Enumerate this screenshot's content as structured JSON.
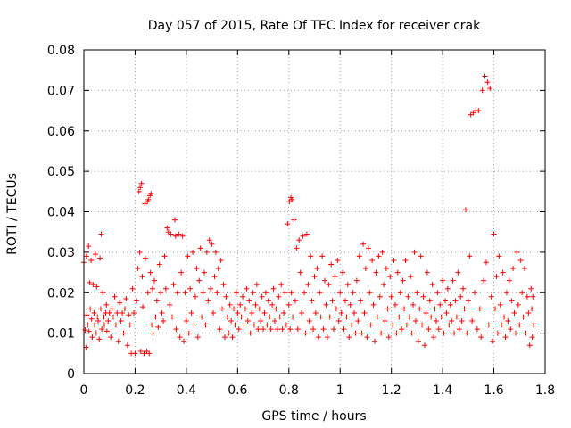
{
  "chart_data": {
    "type": "scatter",
    "title": "Day 057 of 2015, Rate Of TEC Index for receiver crak",
    "xlabel": "GPS time / hours",
    "ylabel": "ROTI / TECUs",
    "xlim": [
      0,
      1.8
    ],
    "ylim": [
      0,
      0.08
    ],
    "grid": true,
    "marker": "+",
    "color": "#ff0000",
    "x_ticks": [
      {
        "value": 0,
        "label": "0"
      },
      {
        "value": 0.2,
        "label": "0.2"
      },
      {
        "value": 0.4,
        "label": "0.4"
      },
      {
        "value": 0.6,
        "label": "0.6"
      },
      {
        "value": 0.8,
        "label": "0.8"
      },
      {
        "value": 1.0,
        "label": "1"
      },
      {
        "value": 1.2,
        "label": "1.2"
      },
      {
        "value": 1.4,
        "label": "1.4"
      },
      {
        "value": 1.6,
        "label": "1.6"
      },
      {
        "value": 1.8,
        "label": "1.8"
      }
    ],
    "y_ticks": [
      {
        "value": 0,
        "label": "0"
      },
      {
        "value": 0.01,
        "label": "0.01"
      },
      {
        "value": 0.02,
        "label": "0.02"
      },
      {
        "value": 0.03,
        "label": "0.03"
      },
      {
        "value": 0.04,
        "label": "0.04"
      },
      {
        "value": 0.05,
        "label": "0.05"
      },
      {
        "value": 0.06,
        "label": "0.06"
      },
      {
        "value": 0.07,
        "label": "0.07"
      },
      {
        "value": 0.08,
        "label": "0.08"
      }
    ],
    "points": [
      [
        0.0,
        0.0275
      ],
      [
        0.005,
        0.0108
      ],
      [
        0.008,
        0.0065
      ],
      [
        0.01,
        0.029
      ],
      [
        0.012,
        0.0145
      ],
      [
        0.015,
        0.012
      ],
      [
        0.018,
        0.0315
      ],
      [
        0.02,
        0.0105
      ],
      [
        0.022,
        0.0225
      ],
      [
        0.025,
        0.016
      ],
      [
        0.028,
        0.028
      ],
      [
        0.03,
        0.0135
      ],
      [
        0.033,
        0.009
      ],
      [
        0.036,
        0.022
      ],
      [
        0.04,
        0.015
      ],
      [
        0.042,
        0.012
      ],
      [
        0.045,
        0.0295
      ],
      [
        0.048,
        0.01
      ],
      [
        0.05,
        0.0215
      ],
      [
        0.053,
        0.014
      ],
      [
        0.056,
        0.013
      ],
      [
        0.06,
        0.0085
      ],
      [
        0.063,
        0.0285
      ],
      [
        0.066,
        0.016
      ],
      [
        0.068,
        0.0345
      ],
      [
        0.07,
        0.011
      ],
      [
        0.074,
        0.02
      ],
      [
        0.078,
        0.014
      ],
      [
        0.08,
        0.012
      ],
      [
        0.085,
        0.015
      ],
      [
        0.088,
        0.017
      ],
      [
        0.09,
        0.0105
      ],
      [
        0.095,
        0.013
      ],
      [
        0.1,
        0.015
      ],
      [
        0.105,
        0.009
      ],
      [
        0.11,
        0.016
      ],
      [
        0.115,
        0.014
      ],
      [
        0.12,
        0.019
      ],
      [
        0.125,
        0.012
      ],
      [
        0.13,
        0.015
      ],
      [
        0.135,
        0.008
      ],
      [
        0.14,
        0.0175
      ],
      [
        0.145,
        0.013
      ],
      [
        0.15,
        0.015
      ],
      [
        0.155,
        0.01
      ],
      [
        0.16,
        0.016
      ],
      [
        0.165,
        0.0185
      ],
      [
        0.17,
        0.007
      ],
      [
        0.175,
        0.0145
      ],
      [
        0.18,
        0.012
      ],
      [
        0.185,
        0.005
      ],
      [
        0.19,
        0.021
      ],
      [
        0.195,
        0.015
      ],
      [
        0.2,
        0.005
      ],
      [
        0.205,
        0.018
      ],
      [
        0.21,
        0.026
      ],
      [
        0.215,
        0.045
      ],
      [
        0.218,
        0.03
      ],
      [
        0.22,
        0.046
      ],
      [
        0.222,
        0.0055
      ],
      [
        0.225,
        0.047
      ],
      [
        0.228,
        0.024
      ],
      [
        0.23,
        0.0165
      ],
      [
        0.235,
        0.005
      ],
      [
        0.238,
        0.042
      ],
      [
        0.24,
        0.0285
      ],
      [
        0.245,
        0.0055
      ],
      [
        0.248,
        0.0425
      ],
      [
        0.25,
        0.02
      ],
      [
        0.252,
        0.043
      ],
      [
        0.255,
        0.005
      ],
      [
        0.258,
        0.044
      ],
      [
        0.26,
        0.025
      ],
      [
        0.262,
        0.0445
      ],
      [
        0.265,
        0.012
      ],
      [
        0.268,
        0.021
      ],
      [
        0.27,
        0.01
      ],
      [
        0.275,
        0.023
      ],
      [
        0.28,
        0.014
      ],
      [
        0.285,
        0.018
      ],
      [
        0.29,
        0.0115
      ],
      [
        0.295,
        0.027
      ],
      [
        0.3,
        0.02
      ],
      [
        0.305,
        0.015
      ],
      [
        0.31,
        0.013
      ],
      [
        0.315,
        0.029
      ],
      [
        0.32,
        0.021
      ],
      [
        0.325,
        0.036
      ],
      [
        0.33,
        0.035
      ],
      [
        0.335,
        0.017
      ],
      [
        0.34,
        0.0345
      ],
      [
        0.345,
        0.014
      ],
      [
        0.35,
        0.022
      ],
      [
        0.355,
        0.038
      ],
      [
        0.358,
        0.034
      ],
      [
        0.36,
        0.011
      ],
      [
        0.365,
        0.02
      ],
      [
        0.37,
        0.0345
      ],
      [
        0.375,
        0.009
      ],
      [
        0.38,
        0.025
      ],
      [
        0.385,
        0.034
      ],
      [
        0.39,
        0.008
      ],
      [
        0.395,
        0.02
      ],
      [
        0.4,
        0.013
      ],
      [
        0.405,
        0.029
      ],
      [
        0.41,
        0.01
      ],
      [
        0.415,
        0.021
      ],
      [
        0.42,
        0.015
      ],
      [
        0.425,
        0.03
      ],
      [
        0.43,
        0.012
      ],
      [
        0.435,
        0.019
      ],
      [
        0.44,
        0.026
      ],
      [
        0.445,
        0.009
      ],
      [
        0.45,
        0.023
      ],
      [
        0.455,
        0.031
      ],
      [
        0.46,
        0.014
      ],
      [
        0.465,
        0.02
      ],
      [
        0.47,
        0.025
      ],
      [
        0.475,
        0.012
      ],
      [
        0.48,
        0.03
      ],
      [
        0.485,
        0.018
      ],
      [
        0.49,
        0.033
      ],
      [
        0.495,
        0.021
      ],
      [
        0.5,
        0.032
      ],
      [
        0.505,
        0.015
      ],
      [
        0.51,
        0.024
      ],
      [
        0.515,
        0.03
      ],
      [
        0.52,
        0.02
      ],
      [
        0.525,
        0.026
      ],
      [
        0.53,
        0.011
      ],
      [
        0.535,
        0.028
      ],
      [
        0.54,
        0.016
      ],
      [
        0.545,
        0.022
      ],
      [
        0.55,
        0.009
      ],
      [
        0.555,
        0.019
      ],
      [
        0.56,
        0.014
      ],
      [
        0.565,
        0.01
      ],
      [
        0.57,
        0.017
      ],
      [
        0.575,
        0.013
      ],
      [
        0.58,
        0.009
      ],
      [
        0.585,
        0.016
      ],
      [
        0.59,
        0.012
      ],
      [
        0.595,
        0.02
      ],
      [
        0.6,
        0.015
      ],
      [
        0.605,
        0.011
      ],
      [
        0.61,
        0.017
      ],
      [
        0.615,
        0.014
      ],
      [
        0.62,
        0.019
      ],
      [
        0.625,
        0.012
      ],
      [
        0.63,
        0.016
      ],
      [
        0.635,
        0.021
      ],
      [
        0.64,
        0.013
      ],
      [
        0.645,
        0.018
      ],
      [
        0.65,
        0.01
      ],
      [
        0.655,
        0.015
      ],
      [
        0.66,
        0.02
      ],
      [
        0.665,
        0.012
      ],
      [
        0.67,
        0.017
      ],
      [
        0.675,
        0.022
      ],
      [
        0.68,
        0.011
      ],
      [
        0.685,
        0.016
      ],
      [
        0.69,
        0.013
      ],
      [
        0.695,
        0.019
      ],
      [
        0.7,
        0.011
      ],
      [
        0.705,
        0.015
      ],
      [
        0.71,
        0.02
      ],
      [
        0.715,
        0.012
      ],
      [
        0.72,
        0.018
      ],
      [
        0.725,
        0.014
      ],
      [
        0.73,
        0.011
      ],
      [
        0.735,
        0.017
      ],
      [
        0.74,
        0.021
      ],
      [
        0.745,
        0.013
      ],
      [
        0.75,
        0.016
      ],
      [
        0.755,
        0.011
      ],
      [
        0.76,
        0.019
      ],
      [
        0.765,
        0.014
      ],
      [
        0.77,
        0.022
      ],
      [
        0.775,
        0.011
      ],
      [
        0.78,
        0.015
      ],
      [
        0.785,
        0.02
      ],
      [
        0.79,
        0.012
      ],
      [
        0.795,
        0.037
      ],
      [
        0.8,
        0.017
      ],
      [
        0.802,
        0.0425
      ],
      [
        0.805,
        0.011
      ],
      [
        0.808,
        0.0435
      ],
      [
        0.81,
        0.02
      ],
      [
        0.812,
        0.043
      ],
      [
        0.815,
        0.014
      ],
      [
        0.82,
        0.038
      ],
      [
        0.825,
        0.018
      ],
      [
        0.83,
        0.031
      ],
      [
        0.835,
        0.011
      ],
      [
        0.84,
        0.033
      ],
      [
        0.845,
        0.025
      ],
      [
        0.85,
        0.015
      ],
      [
        0.855,
        0.034
      ],
      [
        0.86,
        0.02
      ],
      [
        0.865,
        0.01
      ],
      [
        0.87,
        0.0345
      ],
      [
        0.875,
        0.022
      ],
      [
        0.88,
        0.013
      ],
      [
        0.885,
        0.029
      ],
      [
        0.89,
        0.018
      ],
      [
        0.895,
        0.011
      ],
      [
        0.9,
        0.024
      ],
      [
        0.905,
        0.015
      ],
      [
        0.91,
        0.026
      ],
      [
        0.915,
        0.009
      ],
      [
        0.92,
        0.02
      ],
      [
        0.925,
        0.014
      ],
      [
        0.93,
        0.029
      ],
      [
        0.935,
        0.011
      ],
      [
        0.94,
        0.023
      ],
      [
        0.945,
        0.017
      ],
      [
        0.95,
        0.009
      ],
      [
        0.955,
        0.022
      ],
      [
        0.96,
        0.014
      ],
      [
        0.965,
        0.027
      ],
      [
        0.97,
        0.018
      ],
      [
        0.975,
        0.011
      ],
      [
        0.98,
        0.024
      ],
      [
        0.985,
        0.016
      ],
      [
        0.99,
        0.028
      ],
      [
        0.995,
        0.013
      ],
      [
        1.0,
        0.02
      ],
      [
        1.005,
        0.015
      ],
      [
        1.01,
        0.025
      ],
      [
        1.015,
        0.011
      ],
      [
        1.02,
        0.018
      ],
      [
        1.025,
        0.014
      ],
      [
        1.03,
        0.022
      ],
      [
        1.035,
        0.009
      ],
      [
        1.04,
        0.017
      ],
      [
        1.045,
        0.012
      ],
      [
        1.05,
        0.02
      ],
      [
        1.055,
        0.015
      ],
      [
        1.06,
        0.01
      ],
      [
        1.065,
        0.023
      ],
      [
        1.07,
        0.013
      ],
      [
        1.075,
        0.029
      ],
      [
        1.08,
        0.018
      ],
      [
        1.085,
        0.01
      ],
      [
        1.09,
        0.032
      ],
      [
        1.095,
        0.015
      ],
      [
        1.1,
        0.026
      ],
      [
        1.105,
        0.009
      ],
      [
        1.11,
        0.031
      ],
      [
        1.115,
        0.02
      ],
      [
        1.12,
        0.012
      ],
      [
        1.125,
        0.028
      ],
      [
        1.13,
        0.017
      ],
      [
        1.135,
        0.008
      ],
      [
        1.14,
        0.025
      ],
      [
        1.145,
        0.014
      ],
      [
        1.15,
        0.029
      ],
      [
        1.155,
        0.019
      ],
      [
        1.16,
        0.01
      ],
      [
        1.165,
        0.03
      ],
      [
        1.17,
        0.022
      ],
      [
        1.175,
        0.013
      ],
      [
        1.18,
        0.026
      ],
      [
        1.185,
        0.016
      ],
      [
        1.19,
        0.009
      ],
      [
        1.195,
        0.024
      ],
      [
        1.2,
        0.019
      ],
      [
        1.205,
        0.012
      ],
      [
        1.21,
        0.028
      ],
      [
        1.215,
        0.017
      ],
      [
        1.22,
        0.01
      ],
      [
        1.225,
        0.025
      ],
      [
        1.23,
        0.014
      ],
      [
        1.235,
        0.02
      ],
      [
        1.24,
        0.011
      ],
      [
        1.245,
        0.023
      ],
      [
        1.25,
        0.016
      ],
      [
        1.255,
        0.028
      ],
      [
        1.26,
        0.012
      ],
      [
        1.265,
        0.019
      ],
      [
        1.27,
        0.014
      ],
      [
        1.275,
        0.024
      ],
      [
        1.28,
        0.01
      ],
      [
        1.285,
        0.017
      ],
      [
        1.29,
        0.03
      ],
      [
        1.295,
        0.013
      ],
      [
        1.3,
        0.02
      ],
      [
        1.305,
        0.008
      ],
      [
        1.31,
        0.016
      ],
      [
        1.315,
        0.029
      ],
      [
        1.32,
        0.012
      ],
      [
        1.325,
        0.019
      ],
      [
        1.33,
        0.007
      ],
      [
        1.335,
        0.015
      ],
      [
        1.34,
        0.025
      ],
      [
        1.345,
        0.011
      ],
      [
        1.35,
        0.018
      ],
      [
        1.355,
        0.014
      ],
      [
        1.36,
        0.022
      ],
      [
        1.365,
        0.009
      ],
      [
        1.37,
        0.016
      ],
      [
        1.375,
        0.013
      ],
      [
        1.38,
        0.02
      ],
      [
        1.385,
        0.011
      ],
      [
        1.39,
        0.017
      ],
      [
        1.395,
        0.014
      ],
      [
        1.4,
        0.023
      ],
      [
        1.405,
        0.01
      ],
      [
        1.41,
        0.018
      ],
      [
        1.415,
        0.015
      ],
      [
        1.42,
        0.021
      ],
      [
        1.425,
        0.012
      ],
      [
        1.43,
        0.017
      ],
      [
        1.435,
        0.013
      ],
      [
        1.44,
        0.023
      ],
      [
        1.445,
        0.01
      ],
      [
        1.45,
        0.018
      ],
      [
        1.455,
        0.014
      ],
      [
        1.46,
        0.025
      ],
      [
        1.465,
        0.011
      ],
      [
        1.47,
        0.019
      ],
      [
        1.475,
        0.013
      ],
      [
        1.48,
        0.021
      ],
      [
        1.485,
        0.016
      ],
      [
        1.49,
        0.0405
      ],
      [
        1.495,
        0.01
      ],
      [
        1.5,
        0.018
      ],
      [
        1.505,
        0.029
      ],
      [
        1.51,
        0.064
      ],
      [
        1.515,
        0.013
      ],
      [
        1.52,
        0.0645
      ],
      [
        1.525,
        0.02
      ],
      [
        1.53,
        0.065
      ],
      [
        1.535,
        0.011
      ],
      [
        1.54,
        0.065
      ],
      [
        1.545,
        0.016
      ],
      [
        1.55,
        0.009
      ],
      [
        1.555,
        0.07
      ],
      [
        1.56,
        0.023
      ],
      [
        1.565,
        0.0735
      ],
      [
        1.57,
        0.0275
      ],
      [
        1.575,
        0.072
      ],
      [
        1.58,
        0.012
      ],
      [
        1.585,
        0.0705
      ],
      [
        1.59,
        0.019
      ],
      [
        1.595,
        0.008
      ],
      [
        1.6,
        0.0345
      ],
      [
        1.605,
        0.016
      ],
      [
        1.61,
        0.024
      ],
      [
        1.615,
        0.01
      ],
      [
        1.62,
        0.029
      ],
      [
        1.625,
        0.017
      ],
      [
        1.63,
        0.012
      ],
      [
        1.635,
        0.025
      ],
      [
        1.64,
        0.014
      ],
      [
        1.645,
        0.009
      ],
      [
        1.65,
        0.02
      ],
      [
        1.655,
        0.013
      ],
      [
        1.66,
        0.023
      ],
      [
        1.665,
        0.011
      ],
      [
        1.67,
        0.018
      ],
      [
        1.675,
        0.026
      ],
      [
        1.68,
        0.015
      ],
      [
        1.685,
        0.01
      ],
      [
        1.69,
        0.03
      ],
      [
        1.695,
        0.017
      ],
      [
        1.7,
        0.012
      ],
      [
        1.705,
        0.028
      ],
      [
        1.71,
        0.02
      ],
      [
        1.715,
        0.014
      ],
      [
        1.72,
        0.026
      ],
      [
        1.725,
        0.01
      ],
      [
        1.73,
        0.019
      ],
      [
        1.735,
        0.015
      ],
      [
        1.74,
        0.007
      ],
      [
        1.745,
        0.021
      ],
      [
        1.748,
        0.016
      ],
      [
        1.75,
        0.009
      ],
      [
        1.752,
        0.019
      ],
      [
        1.755,
        0.012
      ]
    ]
  }
}
